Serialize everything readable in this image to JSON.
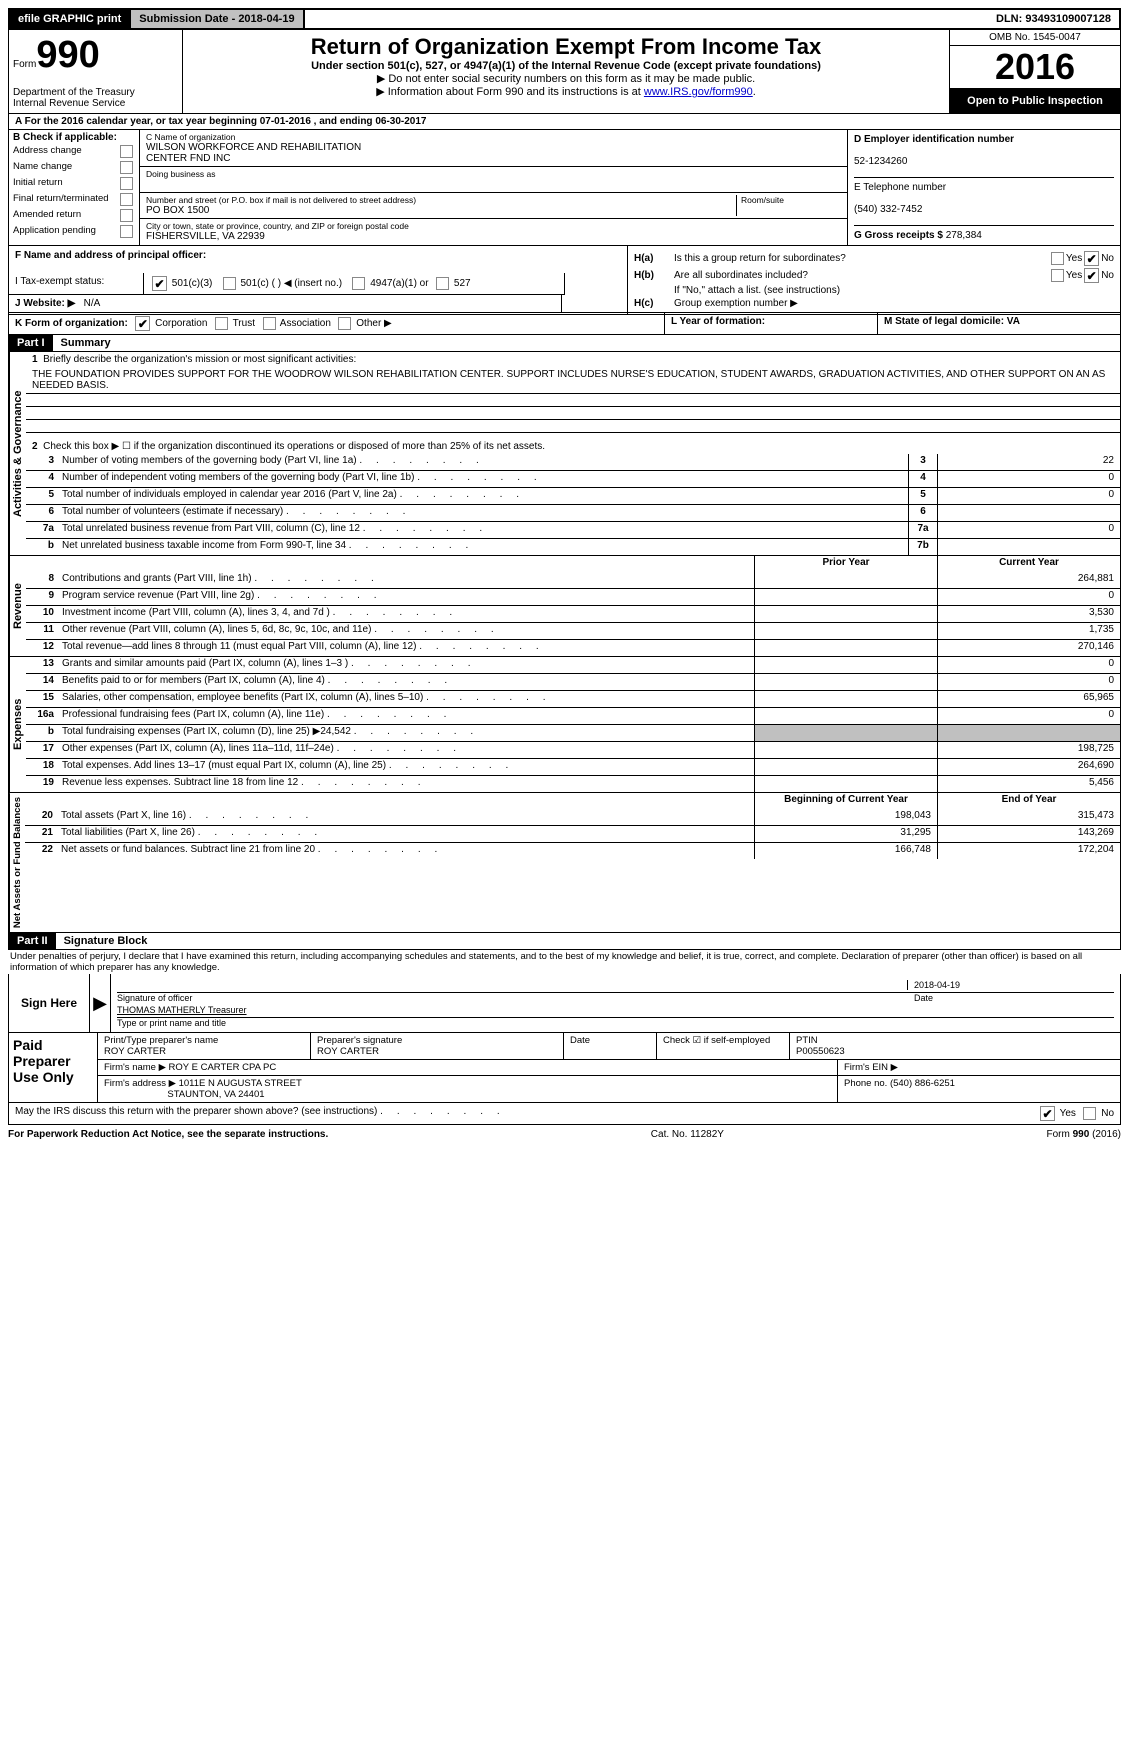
{
  "topbar": {
    "efile": "efile GRAPHIC print",
    "submission": "Submission Date - 2018-04-19",
    "dln_label": "DLN:",
    "dln": "93493109007128"
  },
  "header": {
    "form_prefix": "Form",
    "form_num": "990",
    "dept1": "Department of the Treasury",
    "dept2": "Internal Revenue Service",
    "title": "Return of Organization Exempt From Income Tax",
    "subtitle1": "Under section 501(c), 527, or 4947(a)(1) of the Internal Revenue Code (except private foundations)",
    "subtitle2": "▶ Do not enter social security numbers on this form as it may be made public.",
    "subtitle3_pre": "▶ Information about Form 990 and its instructions is at ",
    "subtitle3_link": "www.IRS.gov/form990",
    "omb": "OMB No. 1545-0047",
    "year": "2016",
    "open": "Open to Public Inspection"
  },
  "line_a": "A   For the 2016 calendar year, or tax year beginning 07-01-2016        , and ending 06-30-2017",
  "col_b": {
    "hdr": "B Check if applicable:",
    "items": [
      "Address change",
      "Name change",
      "Initial return",
      "Final return/terminated",
      "Amended return",
      "Application pending"
    ]
  },
  "col_c": {
    "name_label": "C Name of organization",
    "name1": "WILSON WORKFORCE AND REHABILITATION",
    "name2": "CENTER FND INC",
    "dba_label": "Doing business as",
    "addr_label": "Number and street (or P.O. box if mail is not delivered to street address)",
    "room_label": "Room/suite",
    "addr": "PO BOX 1500",
    "city_label": "City or town, state or province, country, and ZIP or foreign postal code",
    "city": "FISHERSVILLE, VA  22939",
    "f_label": "F Name and address of principal officer:"
  },
  "col_d": {
    "d_label": "D Employer identification number",
    "d_val": "52-1234260",
    "e_label": "E Telephone number",
    "e_val": "(540) 332-7452",
    "g_label": "G Gross receipts $",
    "g_val": "278,384"
  },
  "col_h": {
    "ha": "Is this a group return for subordinates?",
    "hb": "Are all subordinates included?",
    "hb_note": "If \"No,\" attach a list. (see instructions)",
    "hc": "Group exemption number ▶",
    "yes": "Yes",
    "no": "No"
  },
  "row_i": {
    "label": "I   Tax-exempt status:",
    "a": "501(c)(3)",
    "b": "501(c) (   ) ◀ (insert no.)",
    "c": "4947(a)(1) or",
    "d": "527"
  },
  "row_j": {
    "label": "J   Website: ▶",
    "val": "N/A"
  },
  "row_k": {
    "label": "K Form of organization:",
    "opts": [
      "Corporation",
      "Trust",
      "Association",
      "Other ▶"
    ],
    "l": "L Year of formation:",
    "m": "M State of legal domicile: VA"
  },
  "part1": {
    "part": "Part I",
    "title": "Summary",
    "side1": "Activities & Governance",
    "side2": "Revenue",
    "side3": "Expenses",
    "side4": "Net Assets or Fund Balances",
    "q1": "Briefly describe the organization's mission or most significant activities:",
    "mission": "THE FOUNDATION PROVIDES SUPPORT FOR THE WOODROW WILSON REHABILITATION CENTER. SUPPORT INCLUDES NURSE'S EDUCATION, STUDENT AWARDS, GRADUATION ACTIVITIES, AND OTHER SUPPORT ON AN AS NEEDED BASIS.",
    "q2": "Check this box ▶ ☐ if the organization discontinued its operations or disposed of more than 25% of its net assets.",
    "rows_a": [
      {
        "n": "3",
        "d": "Number of voting members of the governing body (Part VI, line 1a)",
        "c": "3",
        "v": "22"
      },
      {
        "n": "4",
        "d": "Number of independent voting members of the governing body (Part VI, line 1b)",
        "c": "4",
        "v": "0"
      },
      {
        "n": "5",
        "d": "Total number of individuals employed in calendar year 2016 (Part V, line 2a)",
        "c": "5",
        "v": "0"
      },
      {
        "n": "6",
        "d": "Total number of volunteers (estimate if necessary)",
        "c": "6",
        "v": ""
      },
      {
        "n": "7a",
        "d": "Total unrelated business revenue from Part VIII, column (C), line 12",
        "c": "7a",
        "v": "0"
      },
      {
        "n": "b",
        "d": "Net unrelated business taxable income from Form 990-T, line 34",
        "c": "7b",
        "v": ""
      }
    ],
    "hdr_prior": "Prior Year",
    "hdr_curr": "Current Year",
    "rows_rev": [
      {
        "n": "8",
        "d": "Contributions and grants (Part VIII, line 1h)",
        "p": "",
        "c": "264,881"
      },
      {
        "n": "9",
        "d": "Program service revenue (Part VIII, line 2g)",
        "p": "",
        "c": "0"
      },
      {
        "n": "10",
        "d": "Investment income (Part VIII, column (A), lines 3, 4, and 7d )",
        "p": "",
        "c": "3,530"
      },
      {
        "n": "11",
        "d": "Other revenue (Part VIII, column (A), lines 5, 6d, 8c, 9c, 10c, and 11e)",
        "p": "",
        "c": "1,735"
      },
      {
        "n": "12",
        "d": "Total revenue—add lines 8 through 11 (must equal Part VIII, column (A), line 12)",
        "p": "",
        "c": "270,146"
      }
    ],
    "rows_exp": [
      {
        "n": "13",
        "d": "Grants and similar amounts paid (Part IX, column (A), lines 1–3 )",
        "p": "",
        "c": "0"
      },
      {
        "n": "14",
        "d": "Benefits paid to or for members (Part IX, column (A), line 4)",
        "p": "",
        "c": "0"
      },
      {
        "n": "15",
        "d": "Salaries, other compensation, employee benefits (Part IX, column (A), lines 5–10)",
        "p": "",
        "c": "65,965"
      },
      {
        "n": "16a",
        "d": "Professional fundraising fees (Part IX, column (A), line 11e)",
        "p": "",
        "c": "0"
      },
      {
        "n": "b",
        "d": "Total fundraising expenses (Part IX, column (D), line 25) ▶24,542",
        "p": "GRAY",
        "c": "GRAY"
      },
      {
        "n": "17",
        "d": "Other expenses (Part IX, column (A), lines 11a–11d, 11f–24e)",
        "p": "",
        "c": "198,725"
      },
      {
        "n": "18",
        "d": "Total expenses. Add lines 13–17 (must equal Part IX, column (A), line 25)",
        "p": "",
        "c": "264,690"
      },
      {
        "n": "19",
        "d": "Revenue less expenses. Subtract line 18 from line 12",
        "p": "",
        "c": "5,456"
      }
    ],
    "hdr_beg": "Beginning of Current Year",
    "hdr_end": "End of Year",
    "rows_net": [
      {
        "n": "20",
        "d": "Total assets (Part X, line 16)",
        "p": "198,043",
        "c": "315,473"
      },
      {
        "n": "21",
        "d": "Total liabilities (Part X, line 26)",
        "p": "31,295",
        "c": "143,269"
      },
      {
        "n": "22",
        "d": "Net assets or fund balances. Subtract line 21 from line 20",
        "p": "166,748",
        "c": "172,204"
      }
    ]
  },
  "part2": {
    "part": "Part II",
    "title": "Signature Block",
    "penalty": "Under penalties of perjury, I declare that I have examined this return, including accompanying schedules and statements, and to the best of my knowledge and belief, it is true, correct, and complete. Declaration of preparer (other than officer) is based on all information of which preparer has any knowledge.",
    "sign_here": "Sign Here",
    "sig_officer": "Signature of officer",
    "date": "Date",
    "sig_date": "2018-04-19",
    "officer_name": "THOMAS MATHERLY Treasurer",
    "type_name": "Type or print name and title",
    "paid": "Paid Preparer Use Only",
    "prep_name_label": "Print/Type preparer's name",
    "prep_name": "ROY CARTER",
    "prep_sig_label": "Preparer's signature",
    "prep_sig": "ROY CARTER",
    "prep_date": "Date",
    "check_self": "Check ☑ if self-employed",
    "ptin_label": "PTIN",
    "ptin": "P00550623",
    "firm_name_label": "Firm's name     ▶",
    "firm_name": "ROY E CARTER CPA PC",
    "firm_ein": "Firm's EIN ▶",
    "firm_addr_label": "Firm's address ▶",
    "firm_addr1": "1011E N AUGUSTA STREET",
    "firm_addr2": "STAUNTON, VA  24401",
    "firm_phone": "Phone no. (540) 886-6251",
    "may_irs": "May the IRS discuss this return with the preparer shown above? (see instructions)"
  },
  "footer": {
    "left": "For Paperwork Reduction Act Notice, see the separate instructions.",
    "mid": "Cat. No. 11282Y",
    "right": "Form 990 (2016)"
  }
}
